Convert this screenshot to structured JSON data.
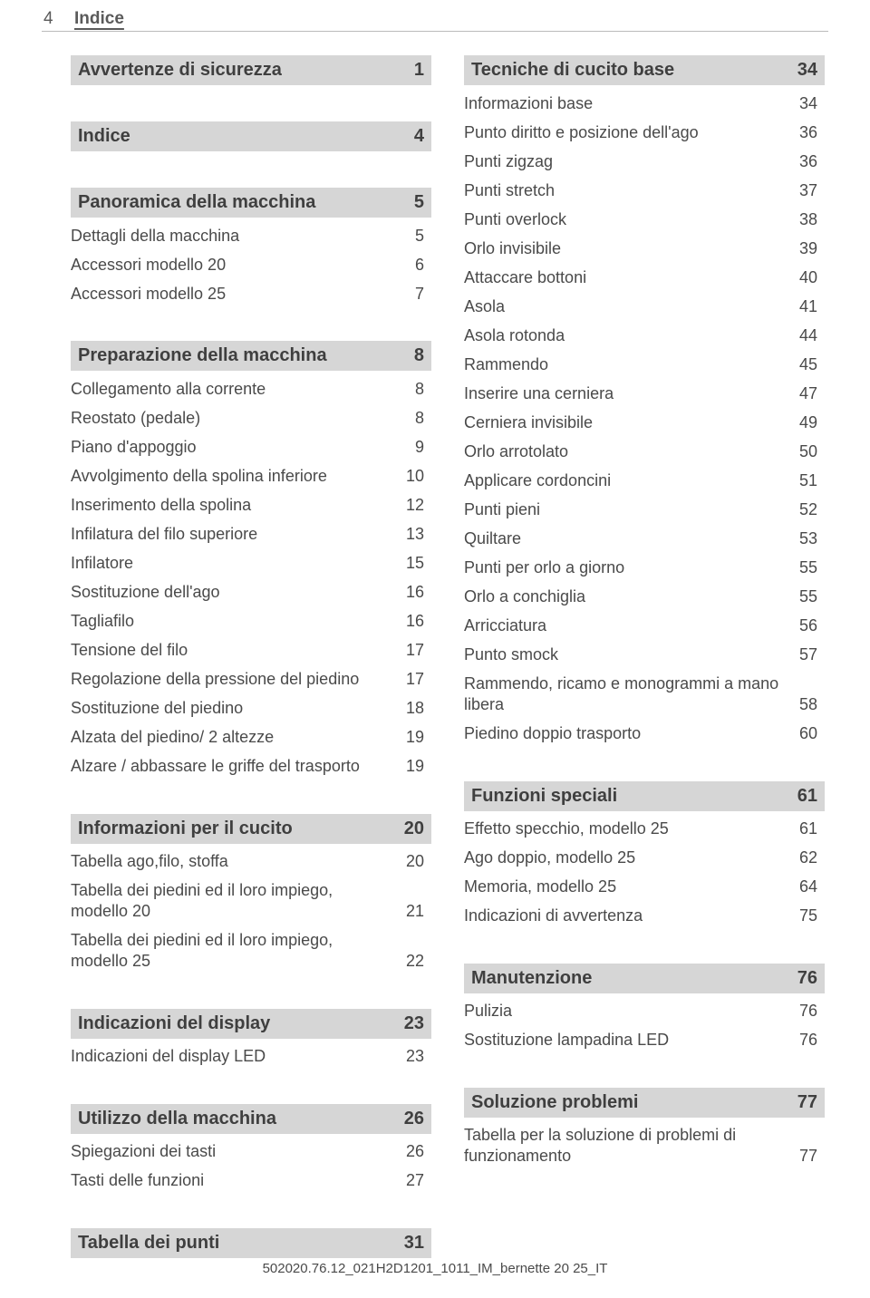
{
  "header": {
    "page_number": "4",
    "title": "Indice"
  },
  "colors": {
    "section_bg": "#d6d6d6",
    "text": "#4a4a4a",
    "rule": "#bbbbbb"
  },
  "left": [
    {
      "type": "head",
      "label": "Avvertenze di sicurezza",
      "page": "1"
    },
    {
      "type": "spacer"
    },
    {
      "type": "head",
      "label": "Indice",
      "page": "4"
    },
    {
      "type": "spacer"
    },
    {
      "type": "head",
      "label": "Panoramica della macchina",
      "page": "5"
    },
    {
      "type": "entry",
      "label": "Dettagli della macchina",
      "page": "5"
    },
    {
      "type": "entry",
      "label": "Accessori modello 20",
      "page": "6"
    },
    {
      "type": "entry",
      "label": "Accessori modello 25",
      "page": "7"
    },
    {
      "type": "spacer"
    },
    {
      "type": "head",
      "label": "Preparazione della macchina",
      "page": "8"
    },
    {
      "type": "entry",
      "label": "Collegamento alla corrente",
      "page": "8"
    },
    {
      "type": "entry",
      "label": "Reostato (pedale)",
      "page": "8"
    },
    {
      "type": "entry",
      "label": "Piano d'appoggio",
      "page": "9"
    },
    {
      "type": "entry",
      "label": "Avvolgimento della spolina inferiore",
      "page": "10"
    },
    {
      "type": "entry",
      "label": "Inserimento  della spolina",
      "page": "12"
    },
    {
      "type": "entry",
      "label": "Infilatura del filo superiore",
      "page": "13"
    },
    {
      "type": "entry",
      "label": "Infilatore",
      "page": "15"
    },
    {
      "type": "entry",
      "label": "Sostituzione dell'ago",
      "page": "16"
    },
    {
      "type": "entry",
      "label": "Tagliafilo",
      "page": "16"
    },
    {
      "type": "entry",
      "label": "Tensione del filo",
      "page": "17"
    },
    {
      "type": "entry",
      "label": "Regolazione della pressione del piedino",
      "page": "17"
    },
    {
      "type": "entry",
      "label": "Sostituzione del piedino",
      "page": "18"
    },
    {
      "type": "entry",
      "label": "Alzata del piedino/ 2 altezze",
      "page": "19"
    },
    {
      "type": "entry",
      "label": "Alzare / abbassare le griffe del trasporto",
      "page": "19"
    },
    {
      "type": "spacer"
    },
    {
      "type": "head",
      "label": "Informazioni per il cucito",
      "page": "20"
    },
    {
      "type": "entry",
      "label": "Tabella ago,filo, stoffa",
      "page": "20"
    },
    {
      "type": "entry",
      "label": "Tabella dei piedini ed il loro impiego, modello 20",
      "page": "21"
    },
    {
      "type": "entry",
      "label": "Tabella dei piedini ed il loro impiego, modello 25",
      "page": "22"
    },
    {
      "type": "spacer"
    },
    {
      "type": "head",
      "label": "Indicazioni  del display",
      "page": "23"
    },
    {
      "type": "entry",
      "label": "Indicazioni del display LED",
      "page": "23"
    },
    {
      "type": "spacer"
    },
    {
      "type": "head",
      "label": "Utilizzo della macchina",
      "page": "26"
    },
    {
      "type": "entry",
      "label": "Spiegazioni dei tasti",
      "page": "26"
    },
    {
      "type": "entry",
      "label": "Tasti delle funzioni",
      "page": "27"
    },
    {
      "type": "spacer"
    },
    {
      "type": "head",
      "label": "Tabella dei punti",
      "page": "31"
    }
  ],
  "right": [
    {
      "type": "head",
      "label": "Tecniche di cucito base",
      "page": "34"
    },
    {
      "type": "entry",
      "label": "Informazioni base",
      "page": "34"
    },
    {
      "type": "entry",
      "label": "Punto diritto e posizione dell'ago",
      "page": "36"
    },
    {
      "type": "entry",
      "label": "Punti zigzag",
      "page": "36"
    },
    {
      "type": "entry",
      "label": "Punti stretch",
      "page": "37"
    },
    {
      "type": "entry",
      "label": "Punti overlock",
      "page": "38"
    },
    {
      "type": "entry",
      "label": "Orlo invisibile",
      "page": "39"
    },
    {
      "type": "entry",
      "label": "Attaccare bottoni",
      "page": "40"
    },
    {
      "type": "entry",
      "label": "Asola",
      "page": "41"
    },
    {
      "type": "entry",
      "label": "Asola rotonda",
      "page": "44"
    },
    {
      "type": "entry",
      "label": "Rammendo",
      "page": "45"
    },
    {
      "type": "entry",
      "label": "Inserire una cerniera",
      "page": "47"
    },
    {
      "type": "entry",
      "label": "Cerniera invisibile",
      "page": "49"
    },
    {
      "type": "entry",
      "label": "Orlo arrotolato",
      "page": "50"
    },
    {
      "type": "entry",
      "label": "Applicare cordoncini",
      "page": "51"
    },
    {
      "type": "entry",
      "label": "Punti pieni",
      "page": "52"
    },
    {
      "type": "entry",
      "label": "Quiltare",
      "page": "53"
    },
    {
      "type": "entry",
      "label": "Punti per orlo a giorno",
      "page": "55"
    },
    {
      "type": "entry",
      "label": "Orlo a conchiglia",
      "page": "55"
    },
    {
      "type": "entry",
      "label": "Arricciatura",
      "page": "56"
    },
    {
      "type": "entry",
      "label": "Punto smock",
      "page": "57"
    },
    {
      "type": "entry",
      "label": "Rammendo, ricamo e monogrammi a mano libera",
      "page": "58"
    },
    {
      "type": "entry",
      "label": "Piedino doppio trasporto",
      "page": "60"
    },
    {
      "type": "spacer"
    },
    {
      "type": "head",
      "label": "Funzioni speciali",
      "page": "61"
    },
    {
      "type": "entry",
      "label": "Effetto specchio, modello 25",
      "page": "61"
    },
    {
      "type": "entry",
      "label": "Ago doppio, modello 25",
      "page": "62"
    },
    {
      "type": "entry",
      "label": "Memoria, modello 25",
      "page": "64"
    },
    {
      "type": "entry",
      "label": "Indicazioni di avvertenza",
      "page": "75"
    },
    {
      "type": "spacer"
    },
    {
      "type": "head",
      "label": "Manutenzione",
      "page": "76"
    },
    {
      "type": "entry",
      "label": "Pulizia",
      "page": "76"
    },
    {
      "type": "entry",
      "label": "Sostituzione lampadina LED",
      "page": "76"
    },
    {
      "type": "spacer"
    },
    {
      "type": "head",
      "label": "Soluzione problemi",
      "page": "77"
    },
    {
      "type": "entry",
      "label": "Tabella per la soluzione di problemi di funzionamento",
      "page": "77"
    }
  ],
  "footer": "502020.76.12_021H2D1201_1011_IM_bernette 20 25_IT"
}
